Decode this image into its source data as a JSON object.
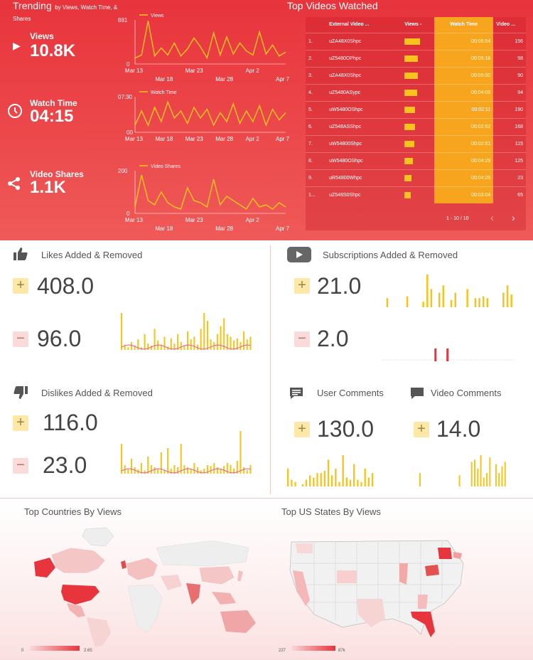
{
  "header": {
    "title": "Trending",
    "title_sub": "by Views, Watch Time, &",
    "title_sub2": "Shares",
    "top_videos_title": "Top Videos Watched"
  },
  "kpis": {
    "views_label": "Views",
    "views_value": "10.8K",
    "watch_label": "Watch Time",
    "watch_value": "04:15",
    "shares_label": "Video Shares",
    "shares_value": "1.1K"
  },
  "mini_charts": {
    "views": {
      "legend": "Views",
      "ymax": "881",
      "ymin": "0",
      "x_top": [
        "Mar 13",
        "Mar 23",
        "Apr 2"
      ],
      "x_bottom": [
        "Mar 18",
        "Mar 28",
        "Apr 7"
      ],
      "values": [
        120,
        180,
        860,
        160,
        320,
        180,
        420,
        160,
        300,
        520,
        340,
        120,
        620,
        180,
        540,
        200,
        420,
        260,
        180,
        640,
        200,
        380,
        160,
        240
      ]
    },
    "watch": {
      "legend": "Watch Time",
      "ymax": "07:30",
      "ymin": "00",
      "x_labels": [
        "Mar 13",
        "Mar 18",
        "Mar 23",
        "Mar 28",
        "Apr 2",
        "Apr 7"
      ],
      "values": [
        20,
        60,
        20,
        70,
        30,
        85,
        40,
        60,
        25,
        70,
        40,
        65,
        20,
        55,
        30,
        80,
        25,
        60,
        30,
        75,
        20,
        65,
        35,
        55
      ]
    },
    "shares": {
      "legend": "Video Shares",
      "ymax": "200",
      "ymin": "0",
      "x_top": [
        "Mar 13",
        "Mar 23",
        "Apr 2"
      ],
      "x_bottom": [
        "Mar 18",
        "Mar 28",
        "Apr 7"
      ],
      "values": [
        30,
        180,
        60,
        40,
        100,
        50,
        30,
        20,
        120,
        60,
        50,
        30,
        160,
        40,
        80,
        60,
        40,
        20,
        70,
        30,
        40,
        20,
        50,
        30
      ]
    }
  },
  "top_videos": {
    "headers": [
      "External Video ...",
      "Views -",
      "Watch Time",
      "Video ..."
    ],
    "rows": [
      {
        "n": "1.",
        "id": "uZA48X0Shpc",
        "views_frac": 1.0,
        "watch": "00:05:54",
        "video": "156"
      },
      {
        "n": "2.",
        "id": "uZ5480OPhpc",
        "views_frac": 0.85,
        "watch": "00:05:18",
        "video": "98"
      },
      {
        "n": "3.",
        "id": "uZA48X0Shpc",
        "views_frac": 0.85,
        "watch": "00:05:00",
        "video": "90"
      },
      {
        "n": "4.",
        "id": "uZ5480ASypc",
        "views_frac": 0.8,
        "watch": "00:04:05",
        "video": "94"
      },
      {
        "n": "5.",
        "id": "uW5480OShpc",
        "views_frac": 0.7,
        "watch": "00:02:11",
        "video": "190"
      },
      {
        "n": "6.",
        "id": "uZ548ASShpc",
        "views_frac": 0.7,
        "watch": "00:02:52",
        "video": "168"
      },
      {
        "n": "7.",
        "id": "uW54800Shpc",
        "views_frac": 0.65,
        "watch": "00:02:51",
        "video": "115"
      },
      {
        "n": "8.",
        "id": "uW5480OShpc",
        "views_frac": 0.55,
        "watch": "00:04:29",
        "video": "125"
      },
      {
        "n": "9.",
        "id": "uR54800Whpc",
        "views_frac": 0.45,
        "watch": "00:04:25",
        "video": "23"
      },
      {
        "n": "1...",
        "id": "uZ548S0Shpc",
        "views_frac": 0.4,
        "watch": "00:03:04",
        "video": "65"
      }
    ],
    "pagination": "1 - 10 / 10",
    "prev": "‹",
    "next": "›"
  },
  "likes": {
    "title": "Likes Added & Removed",
    "added": "408.0",
    "removed": "96.0",
    "bars": [
      70,
      10,
      5,
      15,
      8,
      20,
      5,
      30,
      12,
      8,
      40,
      18,
      10,
      25,
      6,
      22,
      12,
      30,
      15,
      8,
      35,
      20,
      25,
      10,
      40,
      70,
      55,
      20,
      15,
      30,
      45,
      60,
      30,
      25,
      18,
      22,
      15,
      35,
      20,
      25
    ]
  },
  "subs": {
    "title": "Subscriptions Added & Removed",
    "added": "21.0",
    "removed": "2.0",
    "bars_added": [
      0,
      25,
      0,
      0,
      0,
      0,
      30,
      0,
      0,
      0,
      15,
      90,
      50,
      0,
      40,
      60,
      0,
      20,
      40,
      0,
      0,
      50,
      0,
      25,
      25,
      30,
      25,
      0,
      0,
      0,
      40,
      60,
      35
    ],
    "bars_removed": [
      0,
      0,
      0,
      0,
      0,
      0,
      0,
      0,
      0,
      0,
      0,
      0,
      0,
      60,
      0,
      0,
      60,
      0,
      0,
      0,
      0,
      0,
      0,
      0,
      0,
      0,
      0,
      0,
      0,
      0,
      0,
      0,
      0
    ]
  },
  "dislikes": {
    "title": "Dislikes Added & Removed",
    "added": "116.0",
    "removed": "23.0",
    "bars": [
      70,
      20,
      10,
      35,
      15,
      10,
      25,
      8,
      40,
      20,
      15,
      10,
      50,
      8,
      60,
      12,
      20,
      15,
      70,
      20,
      15,
      10,
      25,
      15,
      8,
      12,
      20,
      18,
      25,
      15,
      10,
      18,
      25,
      20,
      12,
      30,
      100,
      15,
      8,
      20
    ]
  },
  "comments": {
    "user_title": "User Comments",
    "video_title": "Video Comments",
    "user_value": "130.0",
    "video_value": "14.0",
    "user_bars": [
      40,
      15,
      10,
      0,
      5,
      15,
      25,
      20,
      30,
      30,
      35,
      60,
      25,
      40,
      10,
      70,
      20,
      15,
      50,
      15,
      10,
      40,
      20,
      30
    ],
    "video_bars": [
      30,
      0,
      0,
      0,
      0,
      0,
      0,
      0,
      0,
      0,
      0,
      0,
      0,
      25,
      0,
      0,
      0,
      55,
      60,
      40,
      70,
      20,
      30,
      65,
      0,
      50,
      30,
      45,
      55
    ]
  },
  "maps": {
    "countries_title": "Top Countries By Views",
    "states_title": "Top US States By Views",
    "countries_min": "0",
    "countries_max": "2.65",
    "states_min": "227",
    "states_max": "87k"
  },
  "colors": {
    "accent": "#f9c31d",
    "red": "#e8343c",
    "orange": "#f7a51f",
    "line_red": "#e55a9a"
  }
}
